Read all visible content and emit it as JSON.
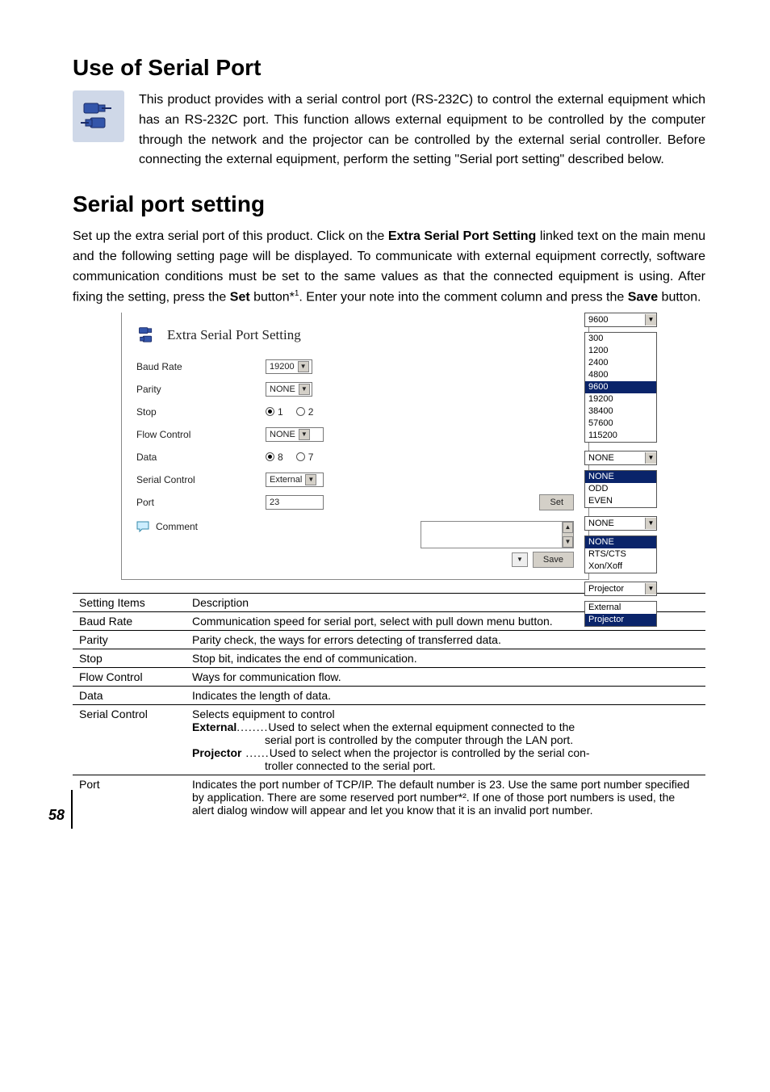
{
  "page_number": "58",
  "section1": {
    "heading": "Use of Serial Port",
    "intro_text": "This product provides with a serial control port (RS-232C) to control the external equipment which has an RS-232C port. This function allows external equipment to be controlled by the computer through the network and the projector can be controlled by the external serial controller. Before connecting the external equipment, perform the setting \"Serial port setting\" described below."
  },
  "section2": {
    "heading": "Serial port setting",
    "intro_text_1": "Set up the extra serial port of this product. Click on the ",
    "intro_bold_1": "Extra Serial Port Setting",
    "intro_text_2": " linked text on the main menu and the following setting page will be displayed. To communicate with external equipment correctly, software communication conditions must be set to the same values as that the connected equipment is using. After fixing the setting, press the ",
    "intro_bold_2": "Set",
    "intro_text_3": " button*",
    "intro_sup": "1",
    "intro_text_4": ". Enter your note into the comment column and press the ",
    "intro_bold_3": "Save",
    "intro_text_5": " button."
  },
  "panel": {
    "title": "Extra Serial Port Setting",
    "rows": {
      "baud": {
        "label": "Baud Rate",
        "value": "19200"
      },
      "parity": {
        "label": "Parity",
        "value": "NONE"
      },
      "stop": {
        "label": "Stop",
        "opt1": "1",
        "opt2": "2"
      },
      "flow": {
        "label": "Flow Control",
        "value": "NONE"
      },
      "data": {
        "label": "Data",
        "opt1": "8",
        "opt2": "7"
      },
      "serialctl": {
        "label": "Serial Control",
        "value": "External"
      },
      "port": {
        "label": "Port",
        "value": "23",
        "set_btn": "Set"
      },
      "comment": {
        "label": "Comment",
        "save_btn": "Save"
      }
    }
  },
  "pop_baud": {
    "closed": "9600",
    "options": [
      "300",
      "1200",
      "2400",
      "4800",
      "9600",
      "19200",
      "38400",
      "57600",
      "115200"
    ],
    "highlight_index": 4
  },
  "pop_parity": {
    "closed": "NONE",
    "options": [
      "NONE",
      "ODD",
      "EVEN"
    ],
    "highlight_index": 0
  },
  "pop_flow": {
    "closed": "NONE",
    "options": [
      "NONE",
      "RTS/CTS",
      "Xon/Xoff"
    ],
    "highlight_index": 0
  },
  "pop_serialctl": {
    "closed": "Projector",
    "options": [
      "External",
      "Projector"
    ],
    "highlight_index": 1
  },
  "table": {
    "head_item": "Setting Items",
    "head_desc": "Description",
    "rows": [
      {
        "item": "Baud Rate",
        "desc": "Communication speed for serial port, select with pull down menu button."
      },
      {
        "item": "Parity",
        "desc": "Parity check, the ways for errors detecting of transferred data."
      },
      {
        "item": "Stop",
        "desc": "Stop bit, indicates the end of communication."
      },
      {
        "item": "Flow Control",
        "desc": "Ways for communication flow."
      },
      {
        "item": "Data",
        "desc": "Indicates the length of data."
      }
    ],
    "serial_control": {
      "item": "Serial Control",
      "desc1": "Selects equipment to control",
      "ext_label": "External",
      "ext_dots": "........",
      "ext_desc": "Used to select when the external equipment connected to the serial port is controlled by the computer through the LAN port.",
      "proj_label": "Projector",
      "proj_dots": " ......",
      "proj_desc": "Used to select when the projector is controlled by the serial controller connected to the serial port."
    },
    "port": {
      "item": "Port",
      "desc": "Indicates the port number of TCP/IP. The default number is 23. Use the same port number specified by application. There are some reserved port number*². If one of those port numbers is used, the alert dialog window will appear and let you know that it is an invalid port number."
    }
  },
  "colors": {
    "highlight_bg": "#0a246a",
    "highlight_fg": "#ffffff",
    "button_bg": "#d4d0c8",
    "border": "#888888",
    "icon_bg": "#cfd8e8",
    "connector_blue": "#3355aa"
  }
}
